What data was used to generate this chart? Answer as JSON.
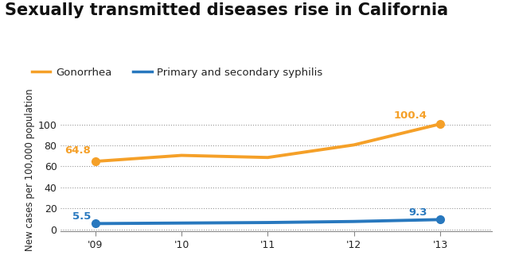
{
  "title": "Sexually transmitted diseases rise in California",
  "ylabel": "New cases per 100,000 population",
  "years": [
    2009,
    2010,
    2011,
    2012,
    2013
  ],
  "x_tick_labels": [
    "'09",
    "'10",
    "'11",
    "'12",
    "'13"
  ],
  "gonorrhea": [
    64.8,
    70.5,
    68.5,
    80.5,
    100.4
  ],
  "syphilis": [
    5.5,
    6.0,
    6.5,
    7.5,
    9.3
  ],
  "gonorrhea_color": "#F5A028",
  "syphilis_color": "#2878BE",
  "gonorrhea_label": "Gonorrhea",
  "syphilis_label": "Primary and secondary syphilis",
  "ylim": [
    -2,
    115
  ],
  "yticks": [
    0,
    20,
    40,
    60,
    80,
    100
  ],
  "title_fontsize": 15,
  "legend_fontsize": 9.5,
  "axis_label_fontsize": 8.5,
  "tick_fontsize": 9,
  "annotation_fontsize": 9.5,
  "line_width": 2.8,
  "background_color": "#ffffff",
  "grid_color": "#999999",
  "text_color": "#222222"
}
